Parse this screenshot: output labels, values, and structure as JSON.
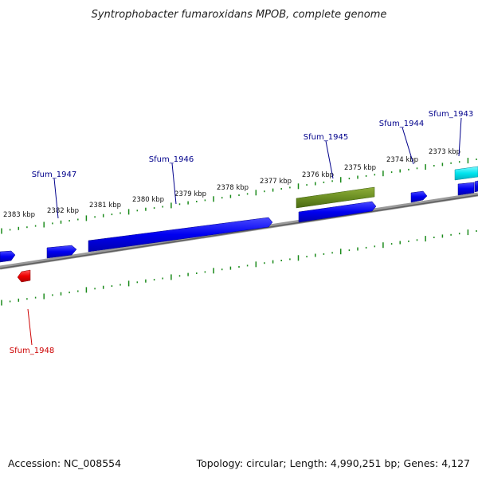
{
  "title": "Syntrophobacter fumaroxidans MPOB, complete genome",
  "footer": {
    "accession": "Accession: NC_008554",
    "summary": "Topology: circular; Length: 4,990,251 bp; Genes: 4,127"
  },
  "scale": {
    "ticks": [
      {
        "label": "2383 kbp"
      },
      {
        "label": "2382 kbp"
      },
      {
        "label": "2381 kbp"
      },
      {
        "label": "2380 kbp"
      },
      {
        "label": "2379 kbp"
      },
      {
        "label": "2378 kbp"
      },
      {
        "label": "2377 kbp"
      },
      {
        "label": "2376 kbp"
      },
      {
        "label": "2375 kbp"
      },
      {
        "label": "2374 kbp"
      },
      {
        "label": "2373 kbp"
      }
    ]
  },
  "genes": [
    {
      "label": "Sfum_1943",
      "color": "#00008b",
      "feature": "cyan"
    },
    {
      "label": "Sfum_1944",
      "color": "#00008b",
      "feature": "blue"
    },
    {
      "label": "Sfum_1945",
      "color": "#00008b",
      "feature": "olive"
    },
    {
      "label": "Sfum_1946",
      "color": "#00008b",
      "feature": "blue"
    },
    {
      "label": "Sfum_1947",
      "color": "#00008b",
      "feature": "blue"
    },
    {
      "label": "Sfum_1948",
      "color": "#cc0000",
      "feature": "red"
    }
  ],
  "colors": {
    "backbone": "#7a7a7a",
    "ticks": "#1a8a1a",
    "gene_blue": "#0000ee",
    "gene_cyan": "#00e0e8",
    "gene_olive": "#6b8e23",
    "gene_red": "#ee0000",
    "label_blue": "#00008b",
    "label_red": "#cc0000"
  }
}
